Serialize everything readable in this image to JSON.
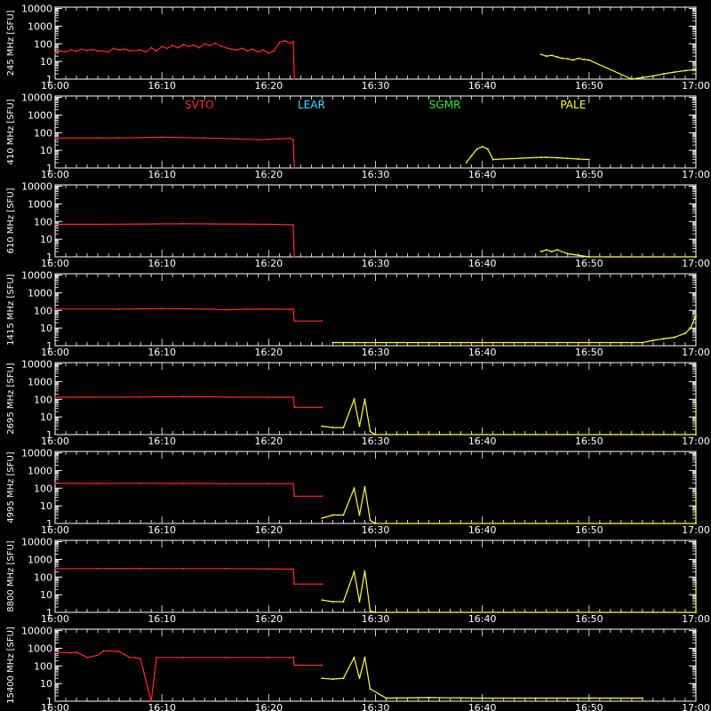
{
  "chart_data": {
    "type": "line",
    "ylabel_unit": "[SFU]",
    "y_tick_labels": [
      "1",
      "10",
      "100",
      "1000",
      "10000"
    ],
    "y_tick_values": [
      1,
      10,
      100,
      1000,
      10000
    ],
    "ylim": [
      1,
      12000
    ],
    "y_scale": "log",
    "x_tick_labels": [
      "16:00",
      "16:10",
      "16:20",
      "16:30",
      "16:40",
      "16:50",
      "17:00"
    ],
    "x_tick_values_min": [
      0,
      10,
      20,
      30,
      40,
      50,
      60
    ],
    "xlim_min": [
      0,
      60
    ],
    "grid": false,
    "stations": [
      {
        "name": "SVTO",
        "color": "#ff2a2a"
      },
      {
        "name": "LEAR",
        "color": "#33e0ff"
      },
      {
        "name": "SGMR",
        "color": "#22ee22"
      },
      {
        "name": "PALE",
        "color": "#ffff33"
      }
    ],
    "panels": [
      {
        "freq_label": "245 MHz",
        "series": [
          {
            "station": "SVTO",
            "points": [
              [
                0,
                30
              ],
              [
                0.5,
                40
              ],
              [
                1,
                35
              ],
              [
                1.5,
                45
              ],
              [
                2,
                38
              ],
              [
                2.5,
                50
              ],
              [
                3,
                42
              ],
              [
                3.5,
                48
              ],
              [
                4,
                40
              ],
              [
                5,
                35
              ],
              [
                5.5,
                55
              ],
              [
                6,
                45
              ],
              [
                6.5,
                50
              ],
              [
                7,
                40
              ],
              [
                8,
                45
              ],
              [
                8.5,
                35
              ],
              [
                9,
                60
              ],
              [
                9.5,
                40
              ],
              [
                10,
                70
              ],
              [
                10.5,
                55
              ],
              [
                11,
                80
              ],
              [
                11.5,
                60
              ],
              [
                12,
                90
              ],
              [
                12.5,
                70
              ],
              [
                13,
                85
              ],
              [
                13.5,
                60
              ],
              [
                14,
                100
              ],
              [
                14.5,
                80
              ],
              [
                15,
                110
              ],
              [
                15.5,
                75
              ],
              [
                16,
                60
              ],
              [
                16.5,
                50
              ],
              [
                17,
                45
              ],
              [
                17.5,
                55
              ],
              [
                18,
                40
              ],
              [
                18.5,
                50
              ],
              [
                19,
                35
              ],
              [
                19.5,
                45
              ],
              [
                20,
                30
              ],
              [
                20.5,
                40
              ],
              [
                21,
                120
              ],
              [
                21.5,
                150
              ],
              [
                22,
                110
              ],
              [
                22.3,
                130
              ],
              [
                22.4,
                1
              ]
            ]
          },
          {
            "station": "PALE",
            "points": [
              [
                45.5,
                25
              ],
              [
                46,
                20
              ],
              [
                46.5,
                22
              ],
              [
                47,
                18
              ],
              [
                47.5,
                15
              ],
              [
                48,
                14
              ],
              [
                48.5,
                12
              ],
              [
                49,
                15
              ],
              [
                49.5,
                13
              ],
              [
                50,
                12
              ],
              [
                54,
                1
              ],
              [
                56,
                1.5
              ],
              [
                57,
                2
              ],
              [
                58,
                2.5
              ],
              [
                59,
                3
              ],
              [
                60,
                3.5
              ]
            ]
          }
        ]
      },
      {
        "freq_label": "410 MHz",
        "series": [
          {
            "station": "SVTO",
            "points": [
              [
                0,
                50
              ],
              [
                4,
                50
              ],
              [
                6,
                50
              ],
              [
                10,
                55
              ],
              [
                14,
                50
              ],
              [
                17,
                45
              ],
              [
                19,
                40
              ],
              [
                20,
                42
              ],
              [
                21,
                45
              ],
              [
                22,
                48
              ],
              [
                22.3,
                40
              ],
              [
                22.4,
                1
              ]
            ]
          },
          {
            "station": "PALE",
            "points": [
              [
                38.5,
                2
              ],
              [
                39,
                5
              ],
              [
                39.5,
                12
              ],
              [
                40,
                16
              ],
              [
                40.5,
                12
              ],
              [
                41,
                3
              ],
              [
                45.5,
                4
              ],
              [
                46,
                4
              ],
              [
                47,
                3.8
              ],
              [
                48,
                3.5
              ],
              [
                49,
                3.2
              ],
              [
                50,
                3
              ]
            ]
          }
        ]
      },
      {
        "freq_label": "610 MHz",
        "series": [
          {
            "station": "SVTO",
            "points": [
              [
                0,
                70
              ],
              [
                4,
                70
              ],
              [
                8,
                72
              ],
              [
                12,
                75
              ],
              [
                16,
                72
              ],
              [
                20,
                70
              ],
              [
                22.3,
                65
              ],
              [
                22.4,
                1
              ]
            ]
          },
          {
            "station": "PALE",
            "points": [
              [
                45.5,
                2
              ],
              [
                46,
                2.5
              ],
              [
                46.5,
                2
              ],
              [
                47,
                2.5
              ],
              [
                48,
                1.5
              ],
              [
                50,
                1
              ],
              [
                60,
                1
              ]
            ]
          }
        ]
      },
      {
        "freq_label": "1415 MHz",
        "series": [
          {
            "station": "SVTO",
            "points": [
              [
                0,
                120
              ],
              [
                6,
                120
              ],
              [
                10,
                125
              ],
              [
                14,
                120
              ],
              [
                16,
                110
              ],
              [
                18,
                118
              ],
              [
                20,
                120
              ],
              [
                22,
                115
              ],
              [
                22.3,
                120
              ],
              [
                22.4,
                25
              ],
              [
                25,
                25
              ]
            ]
          },
          {
            "station": "PALE",
            "points": [
              [
                26,
                1.5
              ],
              [
                27,
                1.5
              ],
              [
                55,
                1.5
              ],
              [
                56,
                2
              ],
              [
                57,
                2.5
              ],
              [
                58,
                3
              ],
              [
                59,
                5
              ],
              [
                59.5,
                10
              ],
              [
                60,
                50
              ]
            ]
          }
        ]
      },
      {
        "freq_label": "2695 MHz",
        "series": [
          {
            "station": "SVTO",
            "points": [
              [
                0,
                130
              ],
              [
                8,
                135
              ],
              [
                12,
                140
              ],
              [
                16,
                135
              ],
              [
                20,
                130
              ],
              [
                22.3,
                130
              ],
              [
                22.4,
                35
              ],
              [
                25,
                35
              ]
            ]
          },
          {
            "station": "PALE",
            "points": [
              [
                25,
                3
              ],
              [
                26,
                2.5
              ],
              [
                27,
                2.5
              ],
              [
                28,
                100
              ],
              [
                28.5,
                3
              ],
              [
                29,
                100
              ],
              [
                29.5,
                1.5
              ],
              [
                30,
                1
              ],
              [
                60,
                1
              ],
              [
                60,
                50
              ]
            ]
          }
        ]
      },
      {
        "freq_label": "4995 MHz",
        "series": [
          {
            "station": "SVTO",
            "points": [
              [
                0,
                190
              ],
              [
                4,
                185
              ],
              [
                8,
                190
              ],
              [
                12,
                185
              ],
              [
                16,
                180
              ],
              [
                20,
                180
              ],
              [
                22.3,
                180
              ],
              [
                22.4,
                35
              ],
              [
                25,
                35
              ]
            ]
          },
          {
            "station": "PALE",
            "points": [
              [
                25,
                2
              ],
              [
                26,
                3
              ],
              [
                27,
                3
              ],
              [
                28,
                100
              ],
              [
                28.5,
                3
              ],
              [
                29,
                120
              ],
              [
                29.5,
                1.5
              ],
              [
                30,
                1
              ],
              [
                60,
                1
              ],
              [
                60,
                50
              ]
            ]
          }
        ]
      },
      {
        "freq_label": "8800 MHz",
        "series": [
          {
            "station": "SVTO",
            "points": [
              [
                0,
                300
              ],
              [
                4,
                300
              ],
              [
                8,
                305
              ],
              [
                12,
                300
              ],
              [
                16,
                300
              ],
              [
                20,
                290
              ],
              [
                22.3,
                280
              ],
              [
                22.4,
                40
              ],
              [
                25,
                40
              ]
            ]
          },
          {
            "station": "PALE",
            "points": [
              [
                25,
                5
              ],
              [
                26,
                4
              ],
              [
                27,
                4
              ],
              [
                28,
                200
              ],
              [
                28.5,
                4
              ],
              [
                29,
                220
              ],
              [
                29.5,
                1.2
              ],
              [
                30,
                1
              ],
              [
                60,
                1
              ],
              [
                60,
                50
              ]
            ]
          }
        ]
      },
      {
        "freq_label": "15400 MHz",
        "series": [
          {
            "station": "SVTO",
            "points": [
              [
                0,
                600
              ],
              [
                1.5,
                550
              ],
              [
                2,
                600
              ],
              [
                3,
                300
              ],
              [
                4,
                400
              ],
              [
                4.5,
                700
              ],
              [
                5,
                700
              ],
              [
                6,
                650
              ],
              [
                7,
                300
              ],
              [
                7.5,
                300
              ],
              [
                8,
                250
              ],
              [
                9,
                1
              ],
              [
                9.5,
                300
              ],
              [
                12,
                300
              ],
              [
                16,
                300
              ],
              [
                20,
                300
              ],
              [
                22.3,
                300
              ],
              [
                22.4,
                110
              ],
              [
                25,
                110
              ]
            ]
          },
          {
            "station": "PALE",
            "points": [
              [
                25,
                20
              ],
              [
                26,
                18
              ],
              [
                27,
                20
              ],
              [
                28,
                300
              ],
              [
                28.5,
                20
              ],
              [
                29,
                300
              ],
              [
                29.5,
                5
              ],
              [
                31,
                1.5
              ],
              [
                35,
                1.6
              ],
              [
                40,
                1.5
              ],
              [
                45,
                1.5
              ],
              [
                50,
                1.5
              ],
              [
                55,
                1.5
              ]
            ]
          }
        ]
      }
    ]
  }
}
